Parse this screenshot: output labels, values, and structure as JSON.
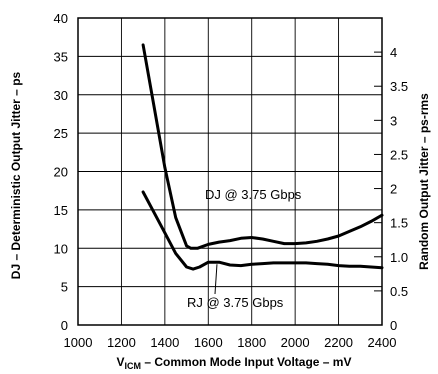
{
  "chart_data": {
    "type": "line",
    "xlabel_prefix": "V",
    "xlabel_sub": "ICM",
    "xlabel_rest": " – Common Mode Input Voltage – mV",
    "ylabel_left": "DJ – Deterministic Output Jitter – ps",
    "ylabel_right": "Random Output Jitter – ps-rms",
    "xlim": [
      1000,
      2400
    ],
    "ylim_left": [
      0,
      40
    ],
    "ylim_right": [
      0,
      4.5
    ],
    "x_ticks": [
      "1000",
      "1200",
      "1400",
      "1600",
      "1800",
      "2000",
      "2200",
      "2400"
    ],
    "x_tick_values": [
      1000,
      1200,
      1400,
      1600,
      1800,
      2000,
      2200,
      2400
    ],
    "y_left_ticks": [
      "0",
      "5",
      "10",
      "15",
      "20",
      "25",
      "30",
      "35",
      "40"
    ],
    "y_left_tick_values": [
      0,
      5,
      10,
      15,
      20,
      25,
      30,
      35,
      40
    ],
    "y_right_ticks": [
      "0",
      "0.5",
      "1.0",
      "1.5",
      "2",
      "2.5",
      "3",
      "3.5",
      "4"
    ],
    "y_right_tick_values": [
      0,
      0.5,
      1.0,
      1.5,
      2,
      2.5,
      3,
      3.5,
      4
    ],
    "grid": true,
    "series": [
      {
        "name": "DJ @ 3.75 Gbps",
        "axis": "left",
        "x": [
          1300,
          1350,
          1400,
          1450,
          1500,
          1520,
          1550,
          1600,
          1650,
          1700,
          1750,
          1800,
          1850,
          1900,
          1950,
          2000,
          2050,
          2100,
          2150,
          2200,
          2250,
          2300,
          2350,
          2400
        ],
        "y": [
          36.5,
          28.5,
          20.5,
          14.0,
          10.3,
          10.0,
          10.0,
          10.5,
          10.8,
          11.0,
          11.3,
          11.4,
          11.2,
          10.9,
          10.6,
          10.6,
          10.7,
          10.9,
          11.2,
          11.6,
          12.2,
          12.8,
          13.5,
          14.3
        ]
      },
      {
        "name": "RJ @ 3.75 Gbps",
        "axis": "right",
        "x": [
          1300,
          1350,
          1400,
          1450,
          1500,
          1530,
          1560,
          1600,
          1650,
          1700,
          1750,
          1800,
          1850,
          1900,
          1950,
          2000,
          2050,
          2100,
          2150,
          2200,
          2250,
          2300,
          2350,
          2400
        ],
        "y": [
          1.95,
          1.65,
          1.35,
          1.05,
          0.85,
          0.82,
          0.85,
          0.92,
          0.92,
          0.88,
          0.87,
          0.89,
          0.9,
          0.91,
          0.91,
          0.91,
          0.91,
          0.9,
          0.89,
          0.87,
          0.86,
          0.86,
          0.85,
          0.84
        ]
      }
    ],
    "annotations": [
      "DJ @ 3.75 Gbps",
      "RJ @ 3.75 Gbps"
    ]
  }
}
